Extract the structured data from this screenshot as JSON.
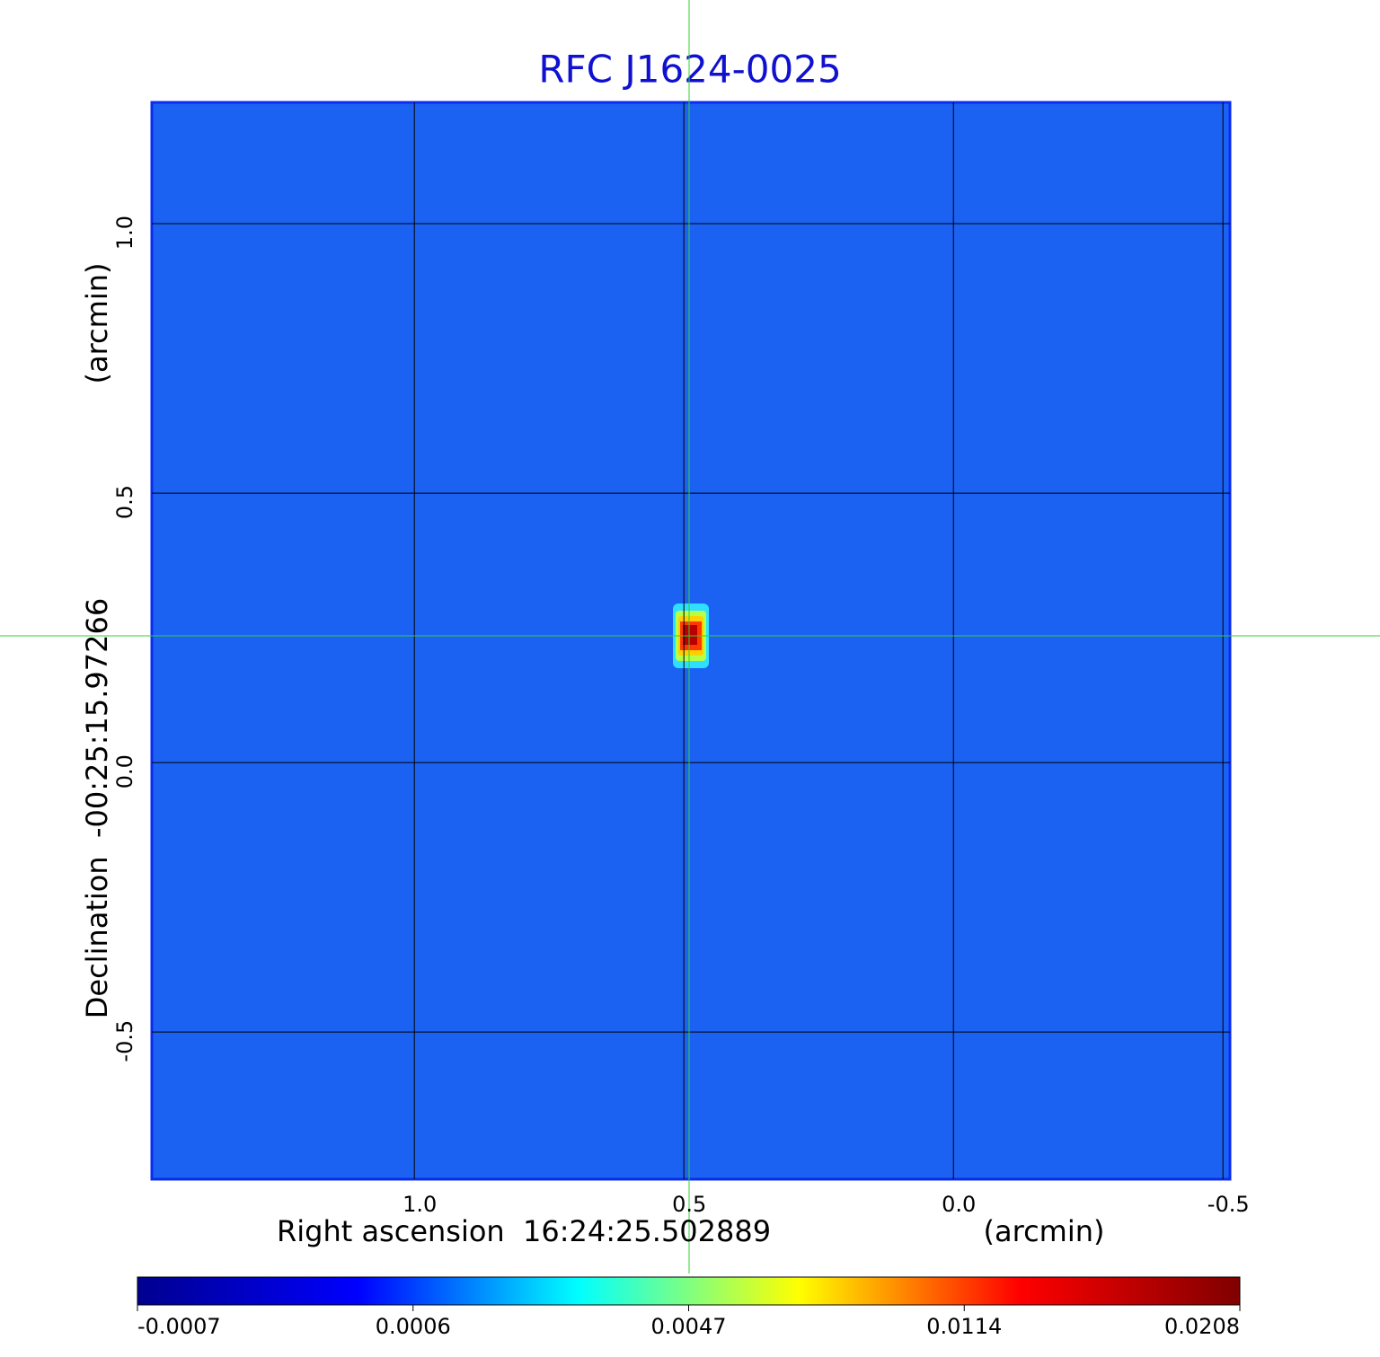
{
  "chart_data": {
    "type": "image",
    "title": "RFC J1624-0025",
    "xlabel": "Right ascension  16:24:25.502889",
    "xunit": "(arcmin)",
    "ylabel": "Declination  -00:25:15.97266",
    "yunit": "(arcmin)",
    "xlim": [
      1.487,
      -0.513
    ],
    "xticks": [
      {
        "value": 1,
        "label": "1.0"
      },
      0.5,
      {
        "value": 0,
        "label": "0.0"
      },
      -0.5
    ],
    "ylim": [
      -0.773,
      1.225
    ],
    "yticks": [
      {
        "value": 1,
        "label": "1.0"
      },
      0.5,
      {
        "value": 0,
        "label": "0.0"
      },
      -0.5
    ],
    "grid": true,
    "colorbar": {
      "ticks": [
        -0.0007,
        0.0006,
        0.0047,
        0.0114,
        0.0208
      ],
      "colors": [
        "#00008f",
        "#0000ff",
        "#00ffff",
        "#ffff00",
        "#ff0000",
        "#800000"
      ]
    }
  }
}
